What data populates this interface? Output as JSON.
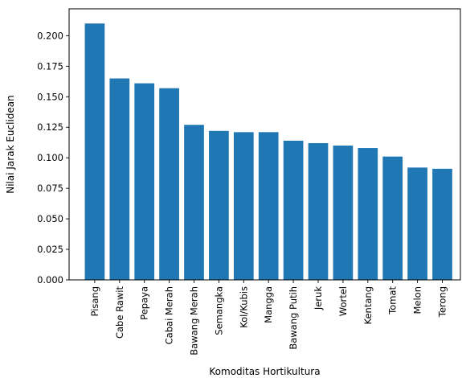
{
  "chart_data": {
    "type": "bar",
    "title": "",
    "xlabel": "Komoditas Hortikultura",
    "ylabel": "Nilai Jarak Euclidean",
    "categories": [
      "Pisang",
      "Cabe Rawit",
      "Pepaya",
      "Cabai Merah",
      "Bawang Merah",
      "Semangka",
      "Kol/Kubis",
      "Mangga",
      "Bawang Putih",
      "Jeruk",
      "Wortel",
      "Kentang",
      "Tomat",
      "Melon",
      "Terong"
    ],
    "values": [
      0.21,
      0.165,
      0.161,
      0.157,
      0.127,
      0.122,
      0.121,
      0.121,
      0.114,
      0.112,
      0.11,
      0.108,
      0.101,
      0.092,
      0.091
    ],
    "ylim": [
      0.0,
      0.222
    ],
    "yticks": [
      "0.000",
      "0.025",
      "0.050",
      "0.075",
      "0.100",
      "0.125",
      "0.150",
      "0.175",
      "0.200"
    ],
    "bar_color": "#1f77b4",
    "grid": false,
    "legend": "none"
  }
}
